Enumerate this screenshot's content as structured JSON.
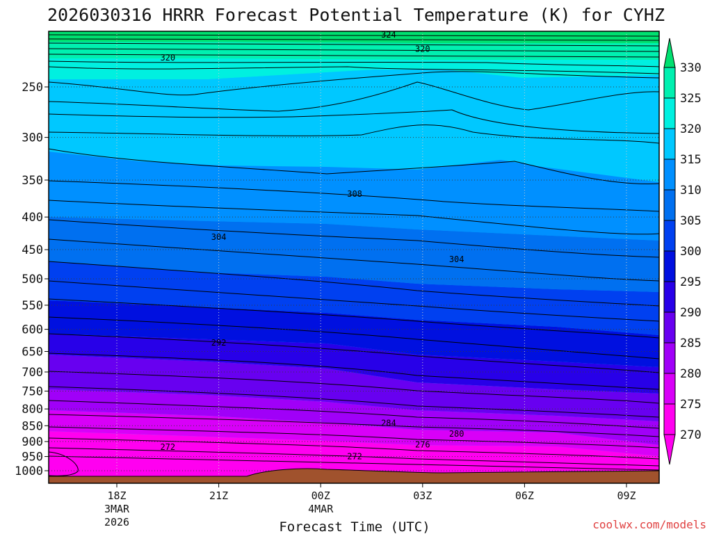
{
  "title": "2026030316 HRRR Forecast Potential Temperature (K) for CYHZ",
  "credit": "coolwx.com/models",
  "chart_data": {
    "type": "contour-filled",
    "title": "2026030316 HRRR Forecast Potential Temperature (K) for CYHZ",
    "xlabel": "Forecast Time (UTC)",
    "ylabel": "",
    "y_scale": "log-pressure (hPa), inverted",
    "ylim_hpa": [
      1010,
      200
    ],
    "y_ticks": [
      "250",
      "300",
      "350",
      "400",
      "450",
      "500",
      "550",
      "600",
      "650",
      "700",
      "750",
      "800",
      "850",
      "900",
      "950",
      "1000"
    ],
    "x_ticks": [
      {
        "time": "2026-03-03 18Z",
        "lines": [
          "18Z",
          "3MAR",
          "2026"
        ]
      },
      {
        "time": "2026-03-03 21Z",
        "lines": [
          "21Z"
        ]
      },
      {
        "time": "2026-03-04 00Z",
        "lines": [
          "00Z",
          "4MAR"
        ]
      },
      {
        "time": "2026-03-04 03Z",
        "lines": [
          "03Z"
        ]
      },
      {
        "time": "2026-03-04 06Z",
        "lines": [
          "06Z"
        ]
      },
      {
        "time": "2026-03-04 09Z",
        "lines": [
          "09Z"
        ]
      }
    ],
    "xlim": [
      "2026-03-03 16Z",
      "2026-03-04 10Z"
    ],
    "colorbar": {
      "levels": [
        "330",
        "325",
        "320",
        "315",
        "310",
        "305",
        "300",
        "295",
        "290",
        "285",
        "280",
        "275",
        "270"
      ],
      "colors": [
        "#00e070",
        "#00f0b0",
        "#00f0e0",
        "#00c8ff",
        "#0090ff",
        "#0070f0",
        "#0040f0",
        "#0010e0",
        "#2800e8",
        "#6800f0",
        "#a000f8",
        "#d800f8",
        "#ff00f0"
      ]
    },
    "contour_labels": [
      {
        "value": "324",
        "time": "2026-03-04 02Z",
        "p": 207
      },
      {
        "value": "320",
        "time": "2026-03-03 19.5Z",
        "p": 225
      },
      {
        "value": "320",
        "time": "2026-03-04 03Z",
        "p": 218
      },
      {
        "value": "308",
        "time": "2026-03-04 01Z",
        "p": 368
      },
      {
        "value": "304",
        "time": "2026-03-03 21Z",
        "p": 430
      },
      {
        "value": "304",
        "time": "2026-03-04 04Z",
        "p": 466
      },
      {
        "value": "292",
        "time": "2026-03-03 21Z",
        "p": 630
      },
      {
        "value": "284",
        "time": "2026-03-04 02Z",
        "p": 842
      },
      {
        "value": "280",
        "time": "2026-03-04 04Z",
        "p": 875
      },
      {
        "value": "276",
        "time": "2026-03-04 03Z",
        "p": 910
      },
      {
        "value": "272",
        "time": "2026-03-03 19.5Z",
        "p": 918
      },
      {
        "value": "272",
        "time": "2026-03-04 01Z",
        "p": 950
      }
    ],
    "grid": true
  }
}
